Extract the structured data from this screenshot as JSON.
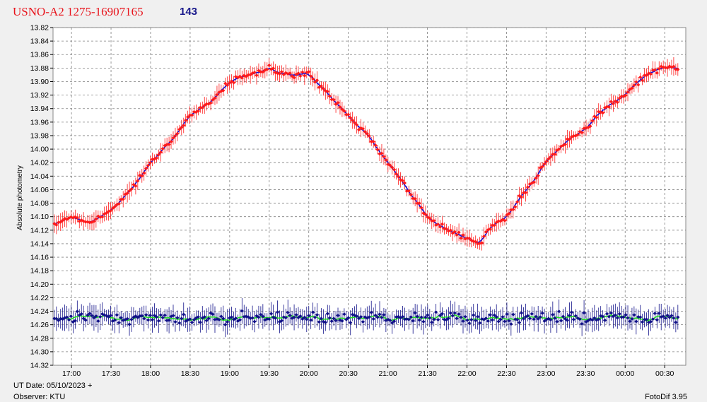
{
  "header": {
    "title": "USNO-A2 1275-16907165",
    "count": "143"
  },
  "footer": {
    "ut_date": "UT Date: 05/10/2023 +",
    "observer": "Observer: KTU",
    "software": "FotoDif 3.95"
  },
  "colors": {
    "target_points": "#ff1a1a",
    "target_line": "#1010e0",
    "check_points": "#101088",
    "check_line": "#20e020",
    "grid": "#808080",
    "plot_bg": "#ffffff"
  },
  "chart_data": {
    "type": "scatter",
    "ylabel": "Absolute photometry",
    "y_inverted": true,
    "ylim": [
      13.82,
      14.32
    ],
    "y_ticks": [
      "13.82",
      "13.84",
      "13.86",
      "13.88",
      "13.90",
      "13.92",
      "13.94",
      "13.96",
      "13.98",
      "14.00",
      "14.02",
      "14.04",
      "14.06",
      "14.08",
      "14.10",
      "14.12",
      "14.14",
      "14.16",
      "14.18",
      "14.20",
      "14.22",
      "14.24",
      "14.26",
      "14.28",
      "14.30",
      "14.32"
    ],
    "xlim": [
      "16:46",
      "00:46"
    ],
    "x_ticks": [
      "17:00",
      "17:30",
      "18:00",
      "18:30",
      "19:00",
      "19:30",
      "20:00",
      "20:30",
      "21:00",
      "21:30",
      "22:00",
      "22:30",
      "23:00",
      "23:30",
      "00:00",
      "00:30"
    ],
    "grid": true,
    "series": [
      {
        "role": "target",
        "marker": "red diamonds with error bars, blue running mean line",
        "x": [
          "16:47",
          "17:00",
          "17:15",
          "17:30",
          "17:45",
          "18:00",
          "18:15",
          "18:30",
          "18:45",
          "19:00",
          "19:15",
          "19:30",
          "19:45",
          "20:00",
          "20:15",
          "20:30",
          "20:45",
          "21:00",
          "21:15",
          "21:30",
          "21:45",
          "22:00",
          "22:10",
          "22:15",
          "22:30",
          "22:45",
          "23:00",
          "23:15",
          "23:30",
          "23:45",
          "00:00",
          "00:15",
          "00:30",
          "00:40"
        ],
        "y": [
          14.11,
          14.1,
          14.11,
          14.09,
          14.06,
          14.02,
          13.99,
          13.95,
          13.93,
          13.9,
          13.89,
          13.88,
          13.89,
          13.89,
          13.92,
          13.95,
          13.98,
          14.02,
          14.06,
          14.1,
          14.12,
          14.13,
          14.14,
          14.12,
          14.1,
          14.06,
          14.02,
          13.99,
          13.97,
          13.94,
          13.92,
          13.89,
          13.88,
          13.88
        ]
      },
      {
        "role": "check",
        "marker": "dark blue diamonds with error bars, green running mean line",
        "x": [
          "16:47",
          "00:40"
        ],
        "y": [
          14.25,
          14.25
        ]
      }
    ]
  }
}
